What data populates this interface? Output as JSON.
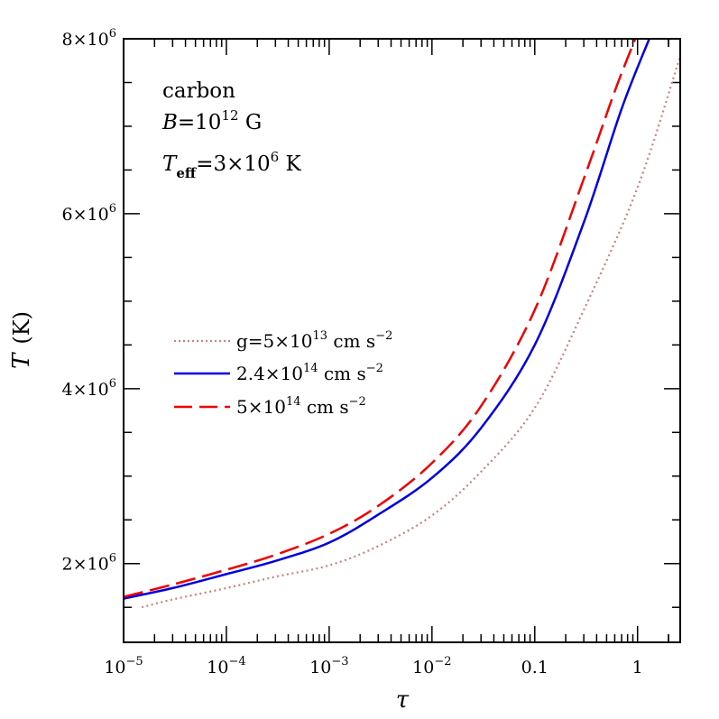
{
  "chart_data": {
    "type": "line",
    "xlabel": "τ",
    "ylabel": "T",
    "ylabel_unit": "(K)",
    "xscale": "log",
    "xlim": [
      1e-05,
      2.6
    ],
    "ylim": [
      1100000,
      8000000
    ],
    "x_ticks": [
      {
        "v": 1e-05,
        "base": "10",
        "exp": "−5"
      },
      {
        "v": 0.0001,
        "base": "10",
        "exp": "−4"
      },
      {
        "v": 0.001,
        "base": "10",
        "exp": "−3"
      },
      {
        "v": 0.01,
        "base": "10",
        "exp": "−2"
      },
      {
        "v": 0.1,
        "base": "0.1",
        "exp": ""
      },
      {
        "v": 1,
        "base": "1",
        "exp": ""
      }
    ],
    "y_ticks": [
      {
        "v": 2000000,
        "base": "2×10",
        "exp": "6"
      },
      {
        "v": 4000000,
        "base": "4×10",
        "exp": "6"
      },
      {
        "v": 6000000,
        "base": "6×10",
        "exp": "6"
      },
      {
        "v": 8000000,
        "base": "8×10",
        "exp": "6"
      }
    ],
    "annotations": {
      "line1": "carbon",
      "line2_var": "B",
      "line2_rest": "=10",
      "line2_exp": "12",
      "line2_unit": " G",
      "line3_var": "T",
      "line3_sub": "eff",
      "line3_rest": "=3×10",
      "line3_exp": "6",
      "line3_unit": " K"
    },
    "legend_position": "center-left",
    "series": [
      {
        "name": "g=5×10",
        "name_exp": "13",
        "name_unit": " cm s",
        "name_unit_exp": "−2",
        "color": "#c8827a",
        "style": "dotted",
        "x": [
          1.5e-05,
          3e-05,
          0.0001,
          0.0003,
          0.001,
          0.003,
          0.01,
          0.03,
          0.1,
          0.3,
          1,
          2.6
        ],
        "y": [
          1500000,
          1590000,
          1720000,
          1850000,
          1980000,
          2200000,
          2550000,
          3050000,
          3780000,
          4900000,
          6300000,
          7800000
        ]
      },
      {
        "name": "2.4×10",
        "name_exp": "14",
        "name_unit": " cm s",
        "name_unit_exp": "−2",
        "color": "#0000dd",
        "style": "solid",
        "x": [
          1e-05,
          3e-05,
          0.0001,
          0.0003,
          0.001,
          0.003,
          0.01,
          0.03,
          0.1,
          0.3,
          0.7,
          1.3
        ],
        "y": [
          1600000,
          1720000,
          1880000,
          2030000,
          2240000,
          2560000,
          2980000,
          3550000,
          4500000,
          5900000,
          7200000,
          8000000
        ]
      },
      {
        "name": "5×10",
        "name_exp": "14",
        "name_unit": " cm s",
        "name_unit_exp": "−2",
        "color": "#ee0000",
        "style": "dashed",
        "x": [
          1e-05,
          3e-05,
          0.0001,
          0.0003,
          0.001,
          0.003,
          0.01,
          0.03,
          0.1,
          0.3,
          0.6,
          0.95
        ],
        "y": [
          1620000,
          1760000,
          1930000,
          2100000,
          2340000,
          2660000,
          3150000,
          3800000,
          4900000,
          6400000,
          7400000,
          8000000
        ]
      }
    ]
  }
}
